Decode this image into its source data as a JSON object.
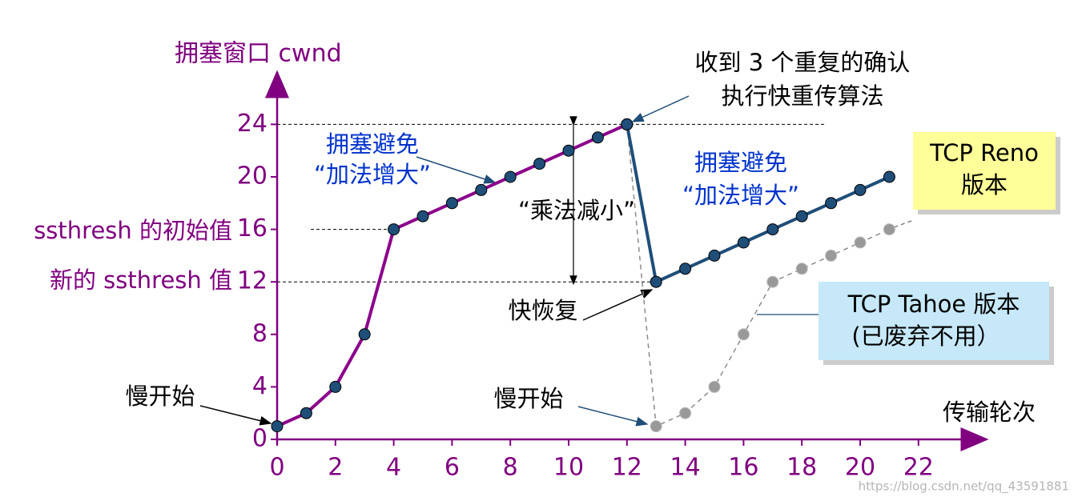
{
  "chart_data": {
    "type": "line",
    "y_label": "拥塞窗口 cwnd",
    "x_label": "传输轮次",
    "xlim": [
      0,
      24
    ],
    "ylim": [
      0,
      28
    ],
    "xticks": [
      0,
      2,
      4,
      6,
      8,
      10,
      12,
      14,
      16,
      18,
      20,
      22
    ],
    "yticks": [
      0,
      4,
      8,
      12,
      16,
      20,
      24
    ],
    "reference_lines": [
      24,
      16,
      12
    ],
    "series": [
      {
        "color": "#8b8b8b",
        "marker_color": "#999999",
        "dashed": true,
        "x": [
          12,
          13,
          14,
          15,
          16,
          17,
          18,
          19,
          20,
          21
        ],
        "values": [
          24,
          1,
          2,
          4,
          8,
          12,
          13,
          14,
          15,
          16
        ]
      },
      {
        "color": "#1f4e79",
        "marker_color": "#1f4e79",
        "dashed": false,
        "x": [
          12,
          13,
          14,
          15,
          16,
          17,
          18,
          19,
          20,
          21
        ],
        "values": [
          24,
          12,
          13,
          14,
          15,
          16,
          17,
          18,
          19,
          20
        ]
      },
      {
        "color": "#8b008b",
        "marker_color": "#1f4e79",
        "dashed": false,
        "x": [
          0,
          1,
          2,
          3,
          4,
          5,
          6,
          7,
          8,
          9,
          10,
          11,
          12
        ],
        "values": [
          1,
          2,
          4,
          8,
          16,
          17,
          18,
          19,
          20,
          21,
          22,
          23,
          24
        ]
      }
    ],
    "annotations": [
      "ssthresh 的初始值",
      "新的 ssthresh 值",
      "慢开始",
      "拥塞避免",
      "“加法增大”",
      "“乘法减小”",
      "收到 3 个重复的确认",
      "执行快重传算法",
      "拥塞避免",
      "“加法增大”",
      "快恢复",
      "慢开始"
    ],
    "reno_box": [
      "TCP Reno",
      "版本"
    ],
    "tahoe_box": [
      "TCP Tahoe 版本",
      "(已废弃不用）"
    ],
    "watermark": "https://blog.csdn.net/qq_43591881"
  }
}
